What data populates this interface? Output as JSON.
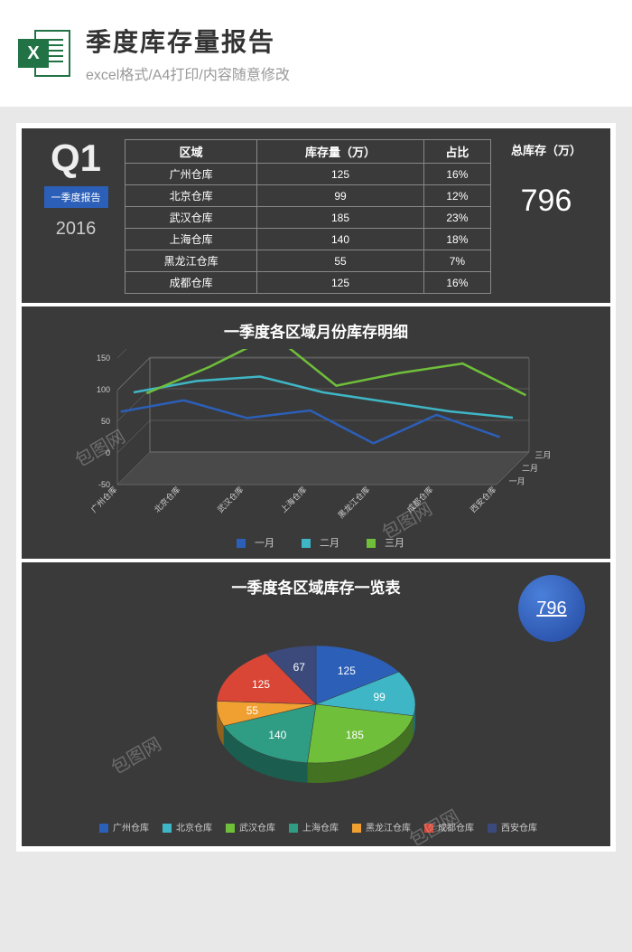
{
  "header": {
    "icon_letter": "X",
    "title": "季度库存量报告",
    "subtitle": "excel格式/A4打印/内容随意修改"
  },
  "quarter": {
    "label": "Q1",
    "tag": "一季度报告",
    "year": "2016"
  },
  "table": {
    "columns": [
      "区域",
      "库存量（万）",
      "占比"
    ],
    "rows": [
      [
        "广州仓库",
        "125",
        "16%"
      ],
      [
        "北京仓库",
        "99",
        "12%"
      ],
      [
        "武汉仓库",
        "185",
        "23%"
      ],
      [
        "上海仓库",
        "140",
        "18%"
      ],
      [
        "黑龙江仓库",
        "55",
        "7%"
      ],
      [
        "成都仓库",
        "125",
        "16%"
      ]
    ],
    "total_label": "总库存（万）",
    "total_value": "796"
  },
  "line_chart": {
    "title": "一季度各区域月份库存明细",
    "categories": [
      "广州仓库",
      "北京仓库",
      "武汉仓库",
      "上海仓库",
      "黑龙江仓库",
      "成都仓库",
      "西安仓库"
    ],
    "y_ticks": [
      -50,
      0,
      50,
      100,
      150
    ],
    "depth_labels": [
      "一月",
      "二月",
      "三月"
    ],
    "series": [
      {
        "name": "一月",
        "color": "#2c5fb8",
        "values": [
          60,
          78,
          50,
          62,
          10,
          55,
          20
        ]
      },
      {
        "name": "二月",
        "color": "#3fb6c6",
        "values": [
          70,
          88,
          95,
          70,
          55,
          40,
          30
        ]
      },
      {
        "name": "三月",
        "color": "#6fbf3a",
        "values": [
          48,
          90,
          140,
          60,
          80,
          95,
          45
        ]
      }
    ],
    "background": "#3a3a3a",
    "grid_color": "#888"
  },
  "pie_chart": {
    "title": "一季度各区域库存一览表",
    "badge_value": "796",
    "slices": [
      {
        "label": "广州仓库",
        "value": 125,
        "color": "#2c5fb8"
      },
      {
        "label": "北京仓库",
        "value": 99,
        "color": "#3fb6c6"
      },
      {
        "label": "武汉仓库",
        "value": 185,
        "color": "#6fbf3a"
      },
      {
        "label": "上海仓库",
        "value": 140,
        "color": "#2e9d84"
      },
      {
        "label": "黑龙江仓库",
        "value": 55,
        "color": "#f0a030"
      },
      {
        "label": "成都仓库",
        "value": 125,
        "color": "#d94636"
      },
      {
        "label": "西安仓库",
        "value": 67,
        "color": "#3b4a7a"
      }
    ],
    "background": "#3a3a3a",
    "label_color": "#fff"
  },
  "watermark": "包图网"
}
